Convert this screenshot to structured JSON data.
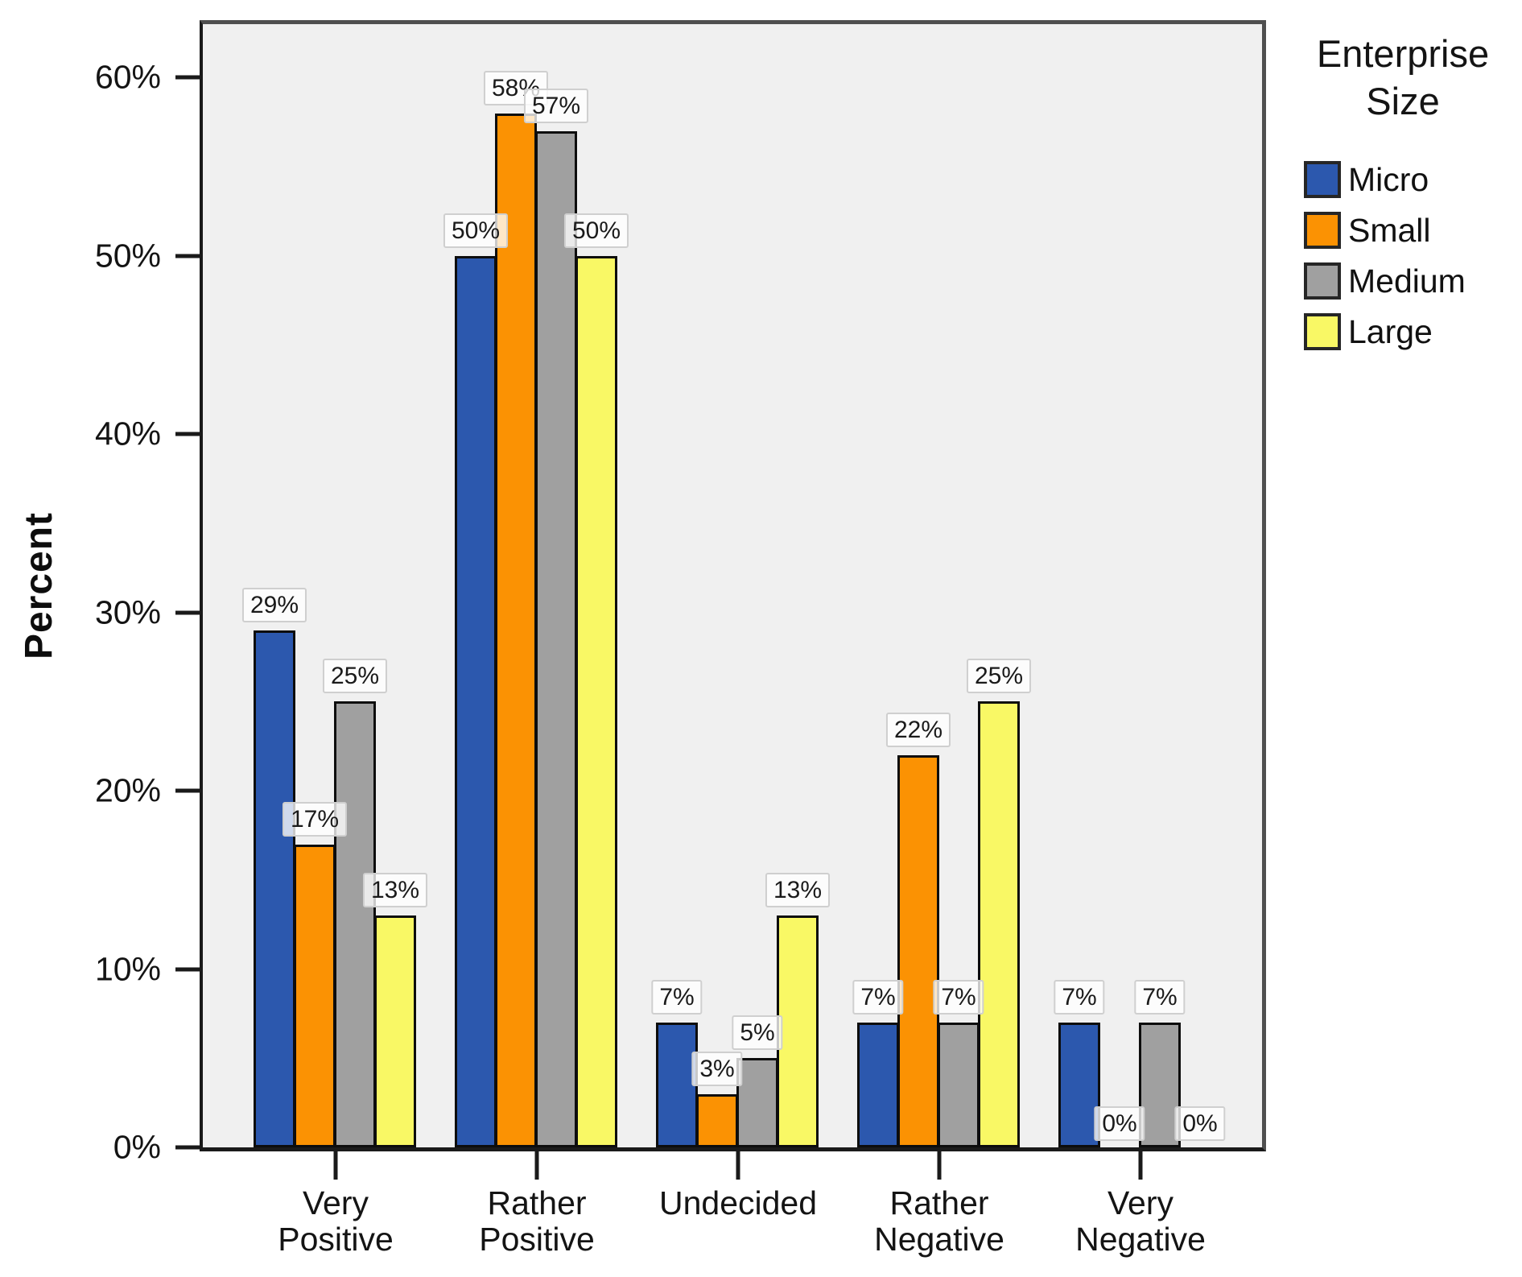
{
  "figure": {
    "background": "#ffffff",
    "plot_background": "#f0f0f0"
  },
  "chart_data": {
    "type": "bar",
    "title": "",
    "ylabel": "Percent",
    "xlabel": "",
    "grid": false,
    "categories": [
      "Very\nPositive",
      "Rather\nPositive",
      "Undecided",
      "Rather\nNegative",
      "Very\nNegative"
    ],
    "series": [
      {
        "name": "Micro",
        "color": "#2c58ae",
        "values": [
          29,
          50,
          7,
          7,
          7
        ]
      },
      {
        "name": "Small",
        "color": "#fb9203",
        "values": [
          17,
          58,
          3,
          22,
          0
        ]
      },
      {
        "name": "Medium",
        "color": "#a0a0a0",
        "values": [
          25,
          57,
          5,
          7,
          7
        ]
      },
      {
        "name": "Large",
        "color": "#f9f865",
        "values": [
          13,
          50,
          13,
          25,
          0
        ]
      }
    ],
    "value_label_suffix": "%",
    "y_axis": {
      "ticks": [
        0,
        10,
        20,
        30,
        40,
        50,
        60
      ],
      "tick_suffix": "%",
      "max": 63
    },
    "legend": {
      "title": "Enterprise Size",
      "position": "top-right"
    }
  }
}
